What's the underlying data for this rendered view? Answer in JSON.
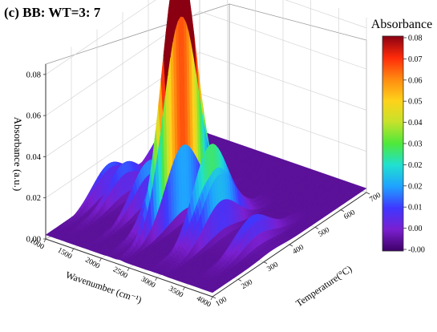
{
  "chart_data": {
    "type": "surface3d",
    "title": "(c) BB: WT=3: 7",
    "zlabel": "Absorbance (a.u.)",
    "xlabel": "Wavenumber (cm⁻¹)",
    "ylabel": "Temperature(°C)",
    "x_ticks": [
      "1000",
      "1500",
      "2000",
      "2500",
      "3000",
      "3500",
      "4000"
    ],
    "y_ticks": [
      "100",
      "200",
      "300",
      "400",
      "500",
      "600",
      "700"
    ],
    "z_ticks": [
      "0.00",
      "0.02",
      "0.04",
      "0.06",
      "0.08"
    ],
    "xlim": [
      1000,
      4000
    ],
    "ylim": [
      100,
      700
    ],
    "zlim": [
      0,
      0.085
    ],
    "colorbar": {
      "title": "Absorbance",
      "ticks": [
        "0.08",
        "0.07",
        "0.06",
        "0.05",
        "0.04",
        "0.03",
        "0.02",
        "0.02",
        "0.01",
        "0.00",
        "-0.00"
      ],
      "range": [
        -0.002,
        0.082
      ]
    },
    "colormap": [
      "#3d0066",
      "#7a1fd0",
      "#3f37ff",
      "#1fa2ff",
      "#20e0d0",
      "#4ee83a",
      "#c6e22b",
      "#ffd21a",
      "#ff8a10",
      "#ff2a0a",
      "#8a0012"
    ],
    "grid": true,
    "peaks": [
      {
        "wavenumber": 1050,
        "temperature": 580,
        "absorbance": 0.018
      },
      {
        "wavenumber": 1080,
        "temperature": 330,
        "absorbance": 0.016
      },
      {
        "wavenumber": 1250,
        "temperature": 340,
        "absorbance": 0.008
      },
      {
        "wavenumber": 1310,
        "temperature": 340,
        "absorbance": 0.015
      },
      {
        "wavenumber": 1740,
        "temperature": 340,
        "absorbance": 0.022
      },
      {
        "wavenumber": 2110,
        "temperature": 330,
        "absorbance": 0.032
      },
      {
        "wavenumber": 2180,
        "temperature": 330,
        "absorbance": 0.035
      },
      {
        "wavenumber": 2320,
        "temperature": 330,
        "absorbance": 0.082
      },
      {
        "wavenumber": 2360,
        "temperature": 330,
        "absorbance": 0.072
      },
      {
        "wavenumber": 2900,
        "temperature": 330,
        "absorbance": 0.041
      },
      {
        "wavenumber": 3000,
        "temperature": 330,
        "absorbance": 0.03
      },
      {
        "wavenumber": 3100,
        "temperature": 320,
        "absorbance": 0.029
      },
      {
        "wavenumber": 3600,
        "temperature": 330,
        "absorbance": 0.009
      },
      {
        "wavenumber": 3650,
        "temperature": 330,
        "absorbance": 0.009
      },
      {
        "wavenumber": 3730,
        "temperature": 330,
        "absorbance": 0.011
      }
    ]
  }
}
